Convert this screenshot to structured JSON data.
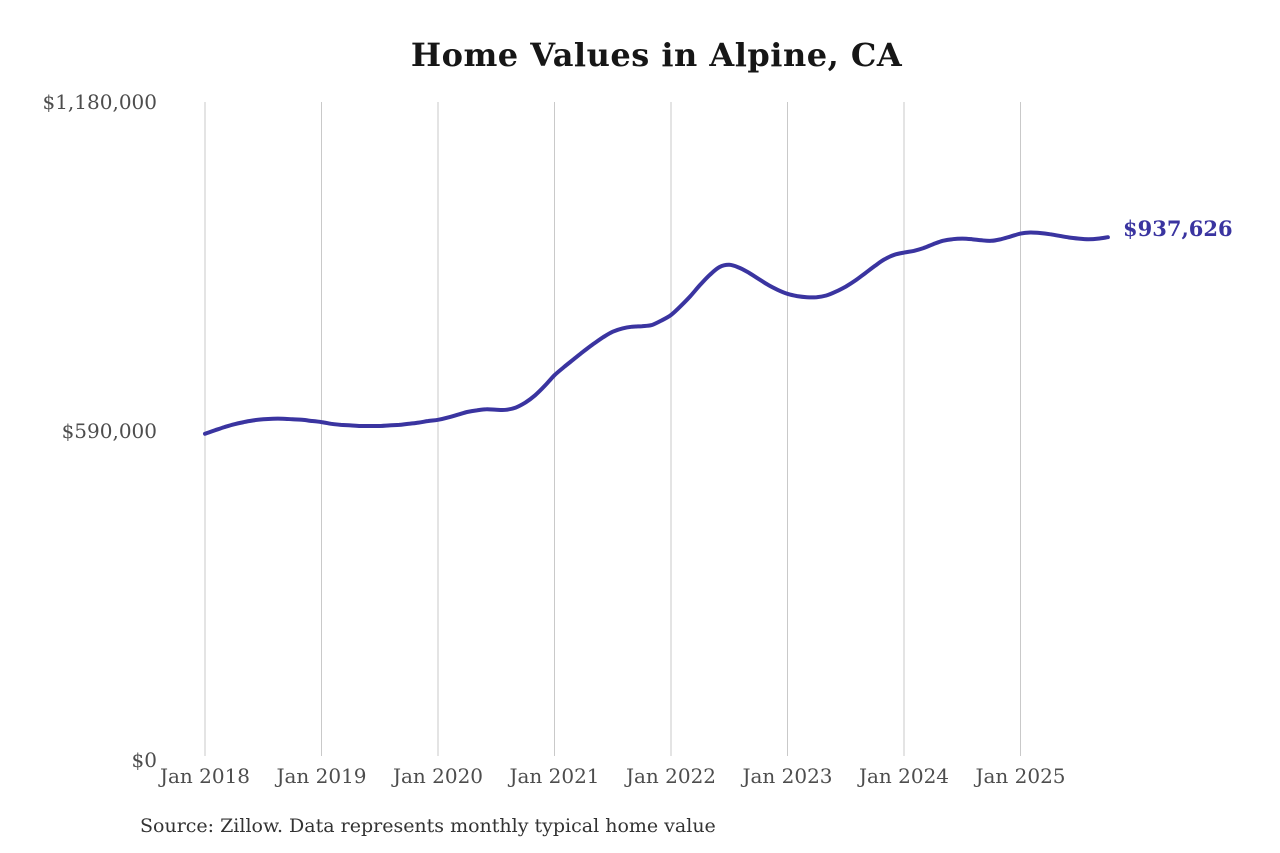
{
  "title": "Home Values in Alpine, CA",
  "latest_value_label": "$937,626",
  "source_note": "Source: Zillow. Data represents monthly typical home value",
  "colors": {
    "line": "#3a34a0",
    "latest_value_label": "#3a34a0",
    "gridline": "#c9c9c9",
    "axis_label": "#4d4d4d",
    "title": "#161616",
    "source": "#333333",
    "background": "#ffffff"
  },
  "chart_data": {
    "type": "line",
    "title": "Home Values in Alpine, CA",
    "xlabel": "",
    "ylabel": "",
    "x_start": "Jan 2018",
    "x_end": "Oct 2025",
    "frequency": "monthly",
    "x_tick_labels": [
      "Jan 2018",
      "Jan 2019",
      "Jan 2020",
      "Jan 2021",
      "Jan 2022",
      "Jan 2023",
      "Jan 2024",
      "Jan 2025"
    ],
    "x_tick_month_indices": [
      0,
      12,
      24,
      36,
      48,
      60,
      72,
      84
    ],
    "y_tick_labels": [
      "$0",
      "$590,000",
      "$1,180,000"
    ],
    "y_ticks": [
      0,
      590000,
      1180000
    ],
    "ylim": [
      0,
      1180000
    ],
    "grid": "vertical-only",
    "legend": "none",
    "latest_value": 937626,
    "series": [
      {
        "name": "Typical home value",
        "values": [
          585000,
          591000,
          597000,
          602000,
          606000,
          609000,
          611000,
          612000,
          612000,
          611000,
          610000,
          608000,
          606000,
          603000,
          601000,
          600000,
          599000,
          599000,
          599000,
          600000,
          601000,
          603000,
          605000,
          608000,
          610000,
          614000,
          619000,
          624000,
          627000,
          629000,
          628000,
          628000,
          632000,
          641000,
          654000,
          671000,
          690000,
          705000,
          719000,
          733000,
          746000,
          758000,
          768000,
          774000,
          777000,
          778000,
          780000,
          788000,
          798000,
          814000,
          832000,
          852000,
          870000,
          884000,
          888000,
          883000,
          874000,
          863000,
          852000,
          843000,
          836000,
          832000,
          830000,
          830000,
          833000,
          840000,
          849000,
          860000,
          873000,
          886000,
          898000,
          906000,
          910000,
          913000,
          918000,
          925000,
          931000,
          934000,
          935000,
          934000,
          932000,
          931000,
          934000,
          939000,
          944000,
          946000,
          945000,
          943000,
          940000,
          937000,
          935000,
          934000,
          935000,
          937626
        ]
      }
    ]
  }
}
